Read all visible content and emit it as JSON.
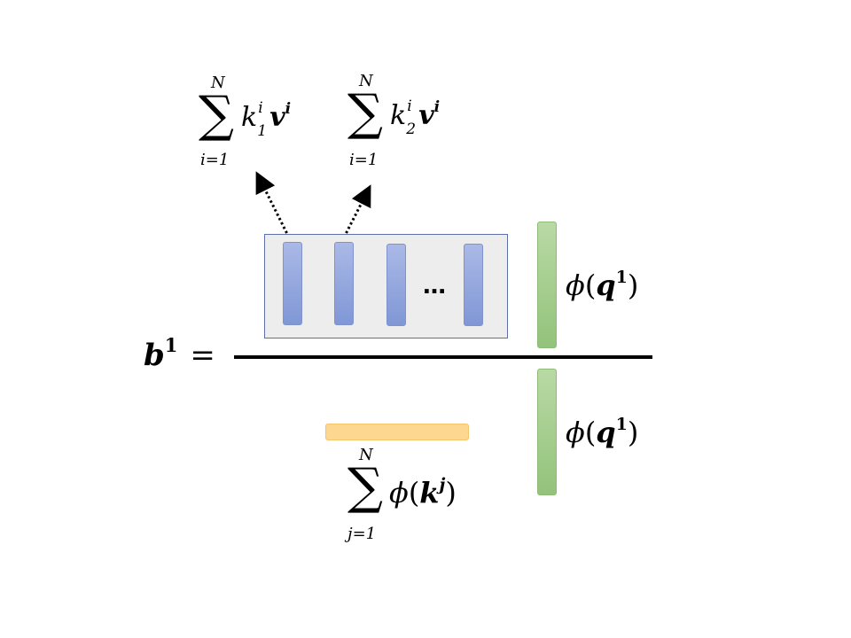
{
  "equation": {
    "lhs_symbol": "b",
    "lhs_sup": "1",
    "equals": "="
  },
  "numerator_sums": [
    {
      "upper": "N",
      "lower": "i=1",
      "k": "k",
      "k_sup": "i",
      "k_sub": "1",
      "v": "v",
      "v_sup": "i"
    },
    {
      "upper": "N",
      "lower": "i=1",
      "k": "k",
      "k_sup": "i",
      "k_sub": "2",
      "v": "v",
      "v_sup": "i"
    }
  ],
  "ellipsis": "…",
  "phi_terms": [
    {
      "phi": "ϕ",
      "open": "(",
      "var": "q",
      "sup": "1",
      "close": ")"
    },
    {
      "phi": "ϕ",
      "open": "(",
      "var": "q",
      "sup": "1",
      "close": ")"
    }
  ],
  "denominator_sum": {
    "upper": "N",
    "lower": "j=1",
    "phi": "ϕ",
    "open": "(",
    "var": "k",
    "sup": "j",
    "close": ")"
  },
  "colors": {
    "kv_vectors": "#8ea3dc",
    "query_vector": "#a9cf91",
    "key_sum_bar": "#fdd68f",
    "frame_border": "#5f6fa8",
    "frame_fill": "#ededed"
  },
  "icons": [
    "dotted-arrow-icon",
    "sum-sign-icon"
  ]
}
